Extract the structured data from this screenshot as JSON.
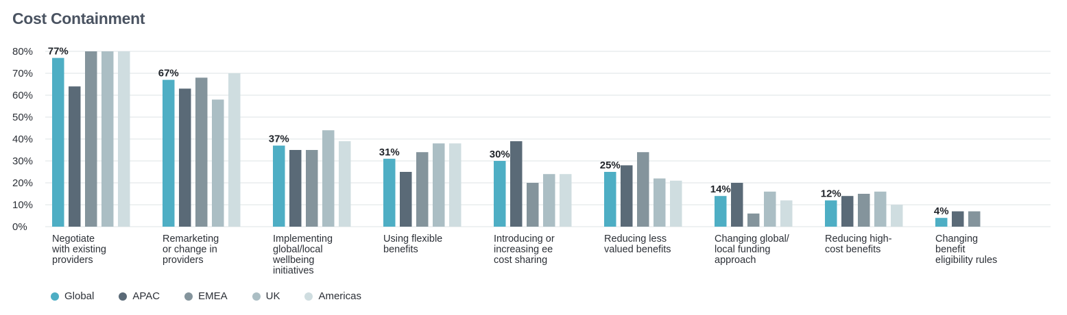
{
  "chart_data": {
    "type": "bar",
    "title": "Cost Containment",
    "ylim": [
      0,
      80
    ],
    "yticks": [
      "0%",
      "10%",
      "20%",
      "30%",
      "40%",
      "50%",
      "60%",
      "70%",
      "80%"
    ],
    "grid": true,
    "legend_position": "bottom-left",
    "categories": [
      [
        "Negotiate",
        "with existing",
        "providers"
      ],
      [
        "Remarketing",
        "or change in",
        "providers"
      ],
      [
        "Implementing",
        "global/local",
        "wellbeing",
        "initiatives"
      ],
      [
        "Using flexible",
        "benefits"
      ],
      [
        "Introducing or",
        "increasing ee",
        "cost sharing"
      ],
      [
        "Reducing less",
        "valued benefits"
      ],
      [
        "Changing global/",
        "local funding",
        "approach"
      ],
      [
        "Reducing high-",
        "cost benefits"
      ],
      [
        "Changing",
        "benefit",
        "eligibility rules"
      ]
    ],
    "series": [
      {
        "name": "Global",
        "color": "#4eaec4",
        "values": [
          77,
          67,
          37,
          31,
          30,
          25,
          14,
          12,
          4
        ]
      },
      {
        "name": "APAC",
        "color": "#5a6a77",
        "values": [
          64,
          63,
          35,
          25,
          39,
          28,
          20,
          14,
          7
        ]
      },
      {
        "name": "EMEA",
        "color": "#84949c",
        "values": [
          80,
          68,
          35,
          34,
          20,
          34,
          6,
          15,
          7
        ]
      },
      {
        "name": "UK",
        "color": "#abbec4",
        "values": [
          80,
          58,
          44,
          38,
          24,
          22,
          16,
          16,
          0
        ]
      },
      {
        "name": "Americas",
        "color": "#cfdde0",
        "values": [
          80,
          70,
          39,
          38,
          24,
          21,
          12,
          10,
          0
        ]
      }
    ],
    "data_labels": [
      "77%",
      "67%",
      "37%",
      "31%",
      "30%",
      "25%",
      "14%",
      "12%",
      "4%"
    ]
  }
}
